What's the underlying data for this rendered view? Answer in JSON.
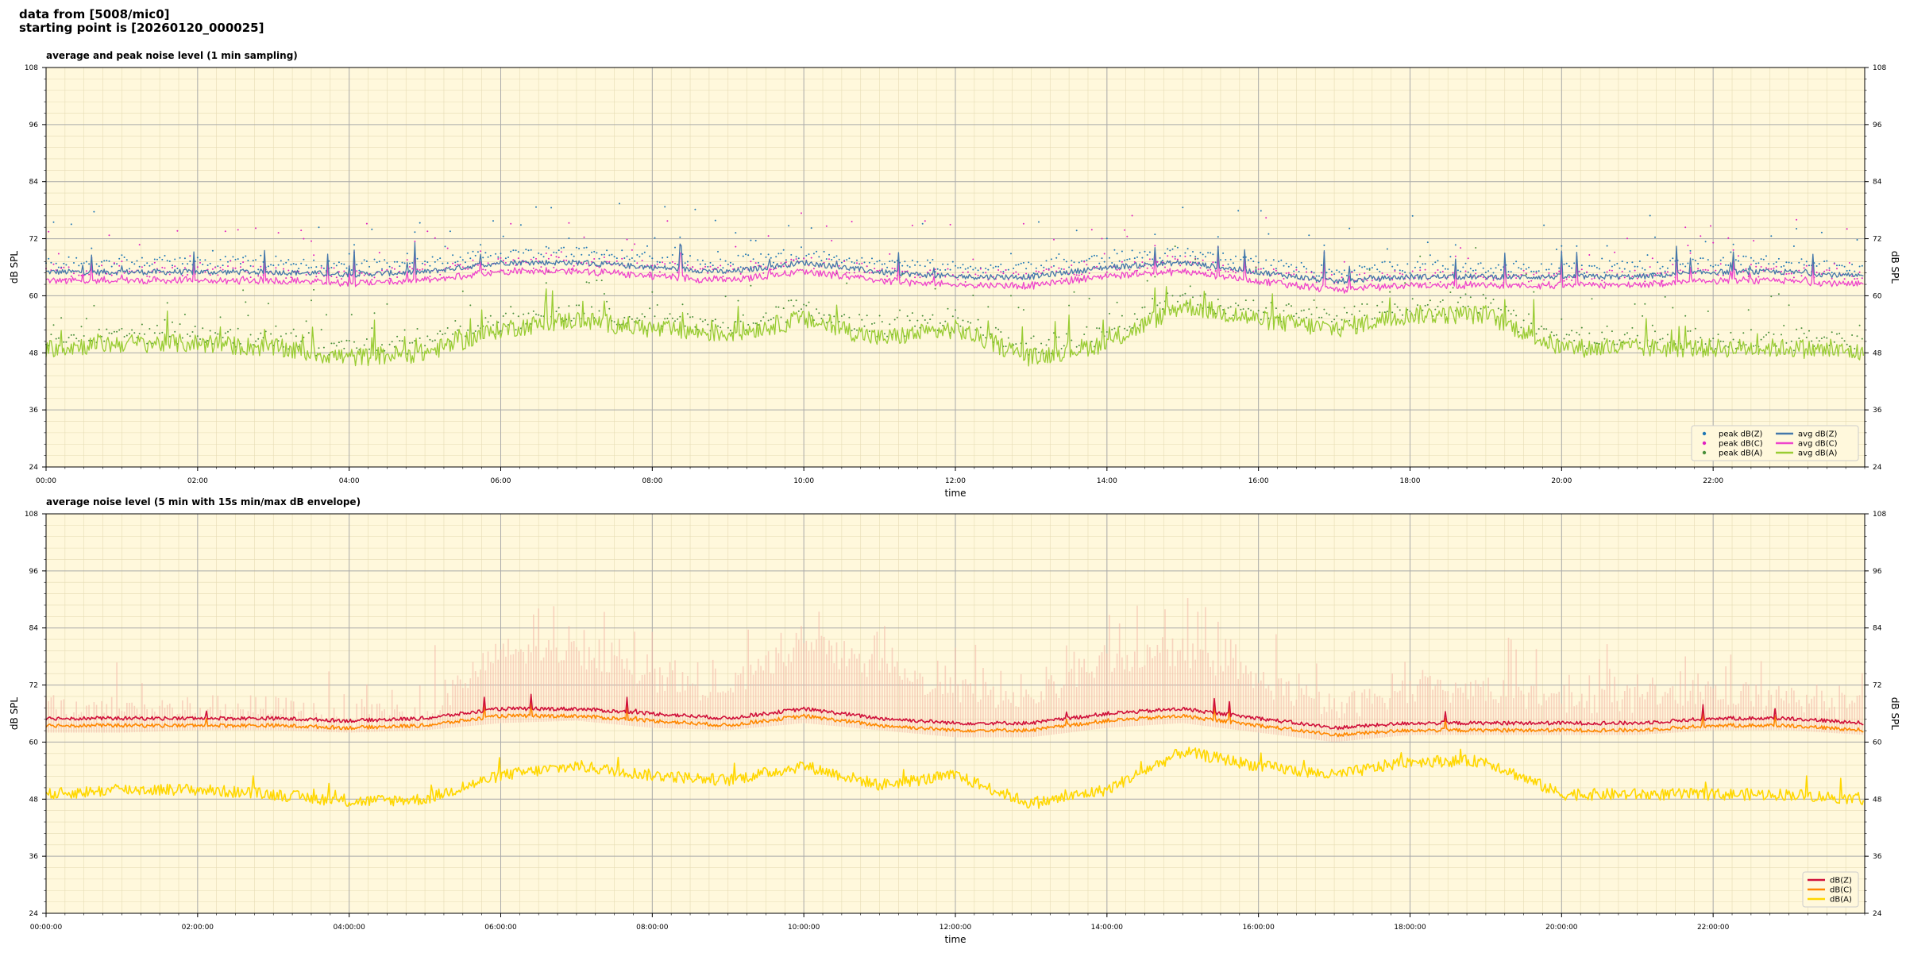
{
  "header": {
    "line1": "data from [5008/mic0]",
    "line2": "starting point is [20260120_000025]"
  },
  "colors": {
    "plot_bg": "#fff8dc",
    "zc_peak": "#1f77b4",
    "c_peak": "#e020c0",
    "a_peak": "#4a8f3a",
    "z_avg_top": "#4477aa",
    "c_avg_top": "#ee44cc",
    "a_avg_top": "#99cc33",
    "z_bottom": "#d0103a",
    "c_bottom": "#ff8800",
    "a_bottom": "#ffd700",
    "envelope": "#f4b9a8"
  },
  "chart_data": [
    {
      "type": "line",
      "title": "average and peak noise level (1 min sampling)",
      "xlabel": "time",
      "ylabel": "dB SPL",
      "ylabel_right": "dB SPL",
      "ylim": [
        24,
        108
      ],
      "yticks": [
        24,
        36,
        48,
        60,
        72,
        84,
        96,
        108
      ],
      "xlim_hours": [
        0,
        24
      ],
      "xticks": [
        "00:00",
        "02:00",
        "04:00",
        "06:00",
        "08:00",
        "10:00",
        "12:00",
        "14:00",
        "16:00",
        "18:00",
        "20:00",
        "22:00"
      ],
      "grid": true,
      "legend_position": "lower-right",
      "legend": [
        {
          "label": "peak dB(Z)",
          "kind": "marker",
          "color": "#1f77b4"
        },
        {
          "label": "peak dB(C)",
          "kind": "marker",
          "color": "#e020c0"
        },
        {
          "label": "peak dB(A)",
          "kind": "marker",
          "color": "#4a8f3a"
        },
        {
          "label": "avg dB(Z)",
          "kind": "line",
          "color": "#4477aa"
        },
        {
          "label": "avg dB(C)",
          "kind": "line",
          "color": "#ee44cc"
        },
        {
          "label": "avg dB(A)",
          "kind": "line",
          "color": "#99cc33"
        }
      ],
      "series_hourly_approx": {
        "x_hours": [
          0,
          1,
          2,
          3,
          4,
          5,
          6,
          7,
          8,
          9,
          10,
          11,
          12,
          13,
          14,
          15,
          16,
          17,
          18,
          19,
          20,
          21,
          22,
          23,
          24
        ],
        "avg_dBZ": [
          65,
          65,
          65,
          65,
          64.5,
          65,
          67,
          67,
          66,
          65,
          67,
          65,
          64,
          64,
          66,
          67,
          65,
          63,
          64,
          64,
          64,
          64,
          65,
          65,
          64
        ],
        "avg_dBC": [
          63,
          63,
          63.5,
          63.5,
          63,
          63.5,
          65,
          65.5,
          64,
          63.5,
          65,
          63.5,
          62,
          62,
          64,
          65,
          63,
          61,
          62.5,
          62.5,
          62.5,
          62.5,
          63.5,
          63.5,
          62.5
        ],
        "avg_dBA": [
          49,
          50,
          50,
          49,
          47,
          48,
          53,
          55,
          53,
          52,
          55,
          51,
          53,
          47,
          50,
          58,
          55,
          53,
          56,
          56,
          49,
          49,
          49,
          49,
          48
        ]
      }
    },
    {
      "type": "line",
      "title": "average noise level (5 min with 15s min/max dB envelope)",
      "xlabel": "time",
      "ylabel": "dB SPL",
      "ylabel_right": "dB SPL",
      "ylim": [
        24,
        108
      ],
      "yticks": [
        24,
        36,
        48,
        60,
        72,
        84,
        96,
        108
      ],
      "xlim_hours": [
        0,
        24
      ],
      "xticks": [
        "00:00:00",
        "02:00:00",
        "04:00:00",
        "06:00:00",
        "08:00:00",
        "10:00:00",
        "12:00:00",
        "14:00:00",
        "16:00:00",
        "18:00:00",
        "20:00:00",
        "22:00:00"
      ],
      "grid": true,
      "legend_position": "lower-right",
      "legend": [
        {
          "label": "dB(Z)",
          "kind": "line",
          "color": "#d0103a"
        },
        {
          "label": "dB(C)",
          "kind": "line",
          "color": "#ff8800"
        },
        {
          "label": "dB(A)",
          "kind": "line",
          "color": "#ffd700"
        }
      ],
      "series_hourly_approx": {
        "x_hours": [
          0,
          1,
          2,
          3,
          4,
          5,
          6,
          7,
          8,
          9,
          10,
          11,
          12,
          13,
          14,
          15,
          16,
          17,
          18,
          19,
          20,
          21,
          22,
          23,
          24
        ],
        "dBZ": [
          65,
          65,
          65,
          65,
          64.5,
          65,
          67,
          67,
          66,
          65,
          67,
          65,
          64,
          64,
          66,
          67,
          65,
          63,
          64,
          64,
          64,
          64,
          65,
          65,
          64
        ],
        "dBC": [
          63.5,
          63.5,
          64,
          64,
          63.5,
          64,
          65.5,
          66,
          64.5,
          64,
          65.5,
          64,
          62.5,
          62.5,
          64.5,
          65.5,
          63.5,
          61.5,
          63,
          63,
          63,
          63,
          64,
          64,
          63
        ],
        "dBA": [
          49,
          50,
          50,
          49,
          47.5,
          48,
          53,
          55,
          53,
          52,
          55,
          51,
          53,
          47,
          50,
          58,
          55,
          53,
          56,
          56,
          49,
          49,
          49,
          49,
          48
        ],
        "envelope_max": [
          68,
          68,
          68,
          68,
          66,
          67,
          80,
          80,
          74,
          72,
          82,
          76,
          72,
          70,
          78,
          80,
          74,
          68,
          72,
          72,
          70,
          70,
          72,
          70,
          68
        ]
      }
    }
  ]
}
